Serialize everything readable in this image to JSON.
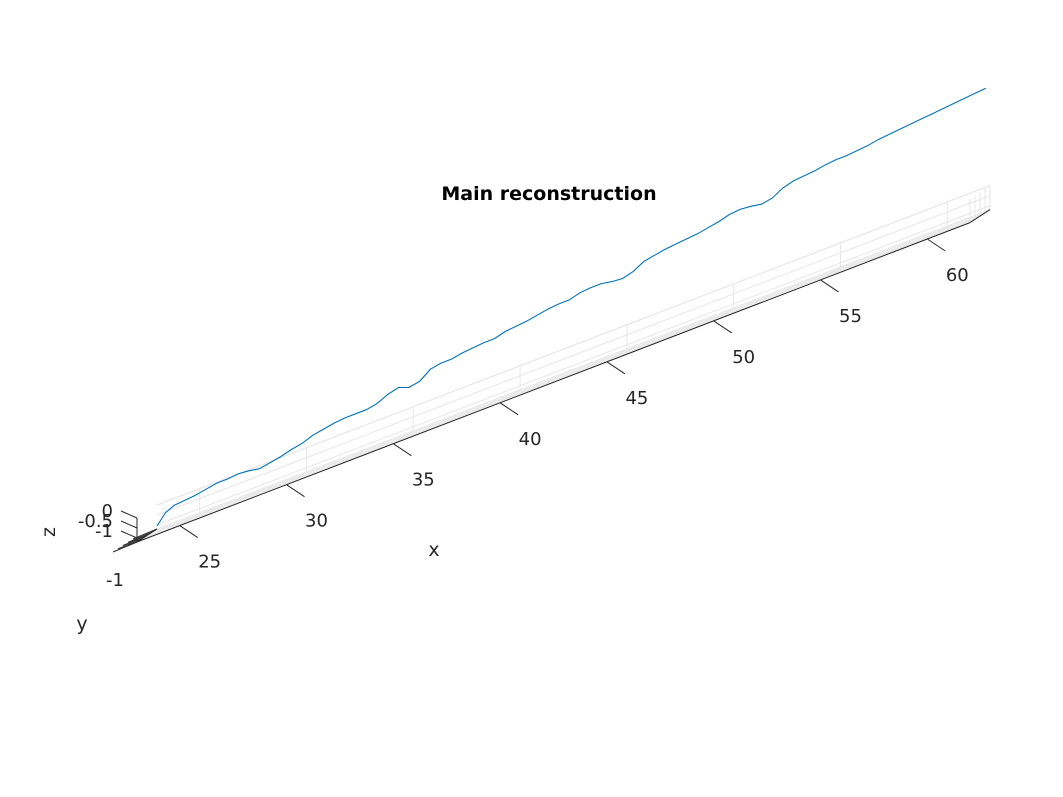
{
  "chart_data": {
    "type": "line",
    "projection": "3d",
    "title": "Main reconstruction",
    "xlabel": "x",
    "ylabel": "y",
    "zlabel": "z",
    "xlim": [
      23,
      62
    ],
    "ylim": [
      -1,
      1
    ],
    "zlim": [
      -1.2,
      0
    ],
    "xticks": [
      "25",
      "30",
      "35",
      "40",
      "45",
      "50",
      "55",
      "60"
    ],
    "yticks": [
      "-1"
    ],
    "zticks": [
      "0",
      "-0.5",
      "-1"
    ],
    "grid": true,
    "colors": {
      "line": "#0072bd",
      "axis": "#262626",
      "grid": "#e6e6e6"
    },
    "series": [
      {
        "x": [
          23.0,
          23.4,
          23.8,
          24.3,
          24.8,
          25.3,
          25.8,
          26.3,
          26.8,
          27.3,
          27.8,
          28.3,
          28.8,
          29.3,
          29.8,
          30.3,
          30.8,
          31.3,
          31.8,
          32.3,
          32.8,
          33.3,
          33.8,
          34.3,
          34.8,
          35.3,
          35.8,
          36.3,
          36.8,
          37.3,
          37.8,
          38.3,
          38.8,
          39.3,
          39.8,
          40.3,
          40.8,
          41.3,
          41.8,
          42.3,
          42.8,
          43.3,
          43.8,
          44.3,
          44.8,
          45.3,
          45.8,
          46.3,
          46.8,
          47.3,
          47.8,
          48.3,
          48.8,
          49.3,
          49.8,
          50.3,
          50.8,
          51.3,
          51.8,
          52.3,
          52.8,
          53.3,
          53.8,
          54.3,
          54.8,
          55.3,
          55.8,
          56.3,
          56.8,
          57.3,
          57.8,
          58.3,
          58.8,
          59.3,
          59.8,
          60.3,
          60.8,
          61.3,
          61.8
        ],
        "y": [
          1,
          1,
          1,
          1,
          1,
          1,
          1,
          1,
          1,
          1,
          1,
          1,
          1,
          1,
          1,
          1,
          1,
          1,
          1,
          1,
          1,
          1,
          1,
          1,
          1,
          1,
          1,
          1,
          1,
          1,
          1,
          1,
          1,
          1,
          1,
          1,
          1,
          1,
          1,
          1,
          1,
          1,
          1,
          1,
          1,
          1,
          1,
          1,
          1,
          1,
          1,
          1,
          1,
          1,
          1,
          1,
          1,
          1,
          1,
          1,
          1,
          1,
          1,
          1,
          1,
          1,
          1,
          1,
          1,
          1,
          1,
          1,
          1,
          1,
          1,
          1,
          1,
          1,
          1
        ],
        "z": [
          -1.05,
          -0.55,
          -0.35,
          -0.3,
          -0.25,
          -0.15,
          -0.05,
          -0.05,
          0.0,
          -0.05,
          -0.15,
          -0.05,
          0.05,
          0.2,
          0.3,
          0.5,
          0.6,
          0.7,
          0.75,
          0.75,
          0.75,
          0.85,
          1.1,
          1.25,
          1.05,
          1.15,
          1.55,
          1.65,
          1.65,
          1.75,
          1.8,
          1.85,
          1.85,
          2.0,
          2.05,
          2.1,
          2.2,
          2.3,
          2.35,
          2.35,
          2.5,
          2.55,
          2.55,
          2.45,
          2.4,
          2.55,
          2.85,
          2.95,
          3.05,
          3.1,
          3.15,
          3.2,
          3.3,
          3.4,
          3.55,
          3.6,
          3.55,
          3.45,
          3.55,
          3.85,
          4.0,
          4.05,
          4.1,
          4.2,
          4.25,
          4.25,
          4.3,
          4.35,
          4.45,
          4.5,
          4.55,
          4.6,
          4.65,
          4.7,
          4.75,
          4.8,
          4.85,
          4.9,
          4.95
        ]
      }
    ]
  }
}
